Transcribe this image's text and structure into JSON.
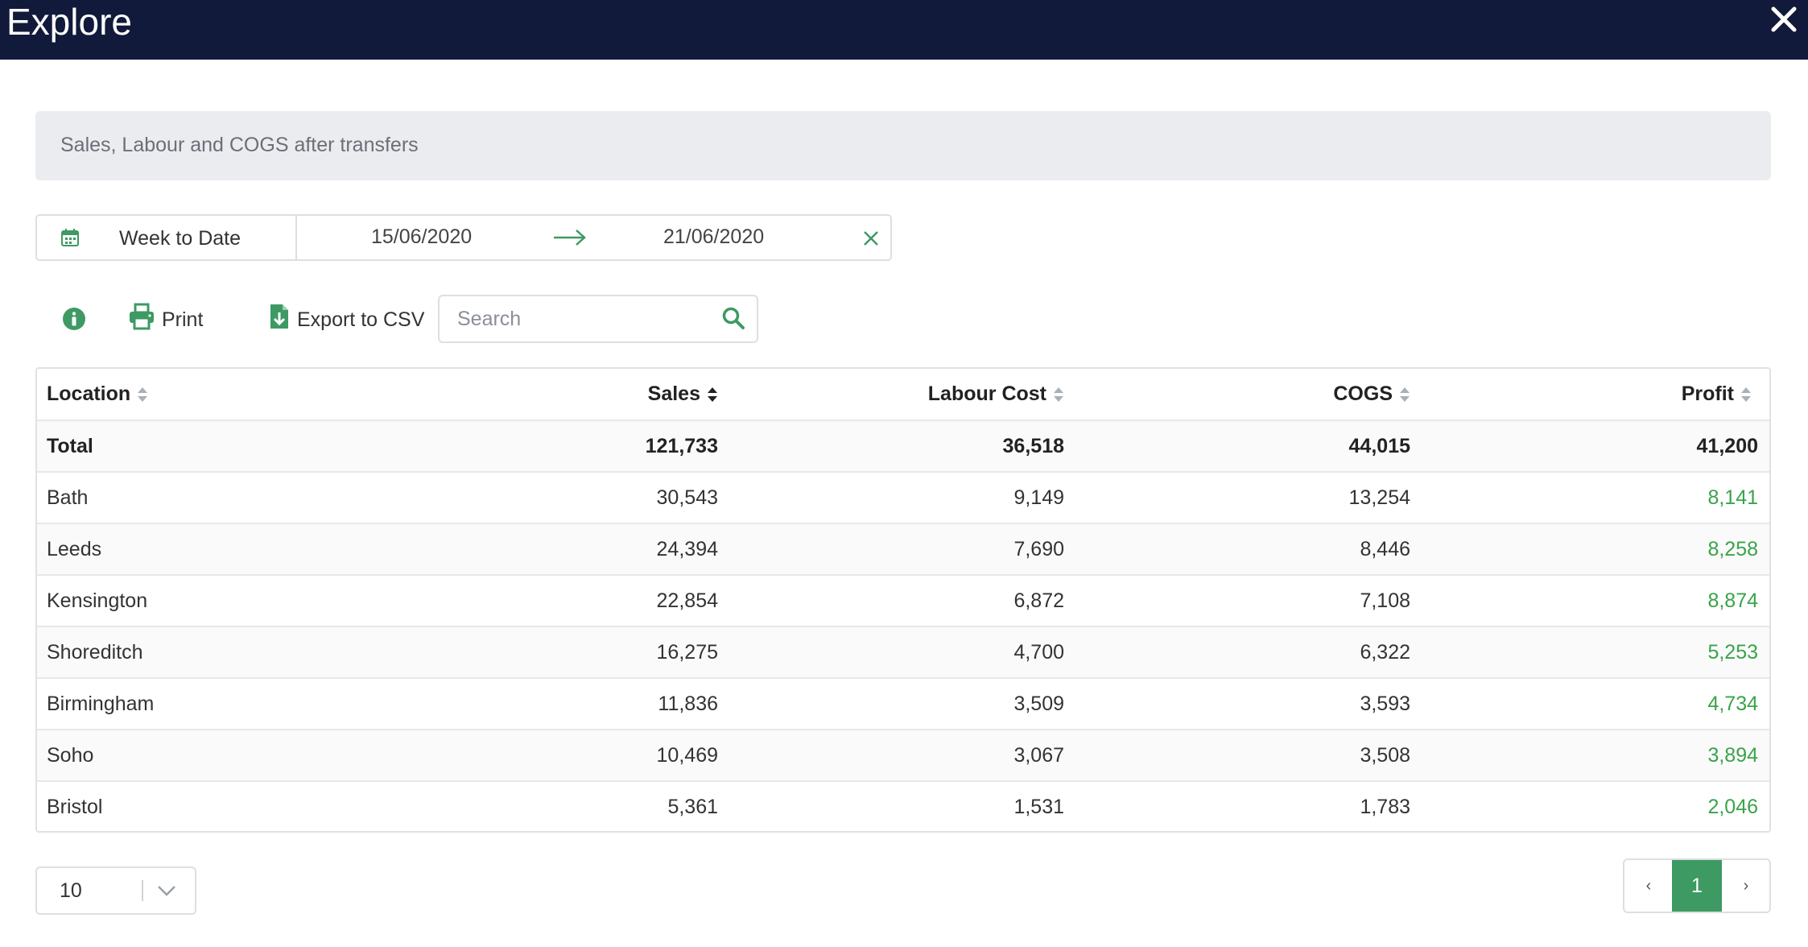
{
  "window": {
    "title": "Explore"
  },
  "banner": {
    "text": "Sales, Labour and COGS after transfers"
  },
  "date_range": {
    "preset": "Week to Date",
    "start": "15/06/2020",
    "end": "21/06/2020"
  },
  "toolbar": {
    "print_label": "Print",
    "export_label": "Export to CSV"
  },
  "search": {
    "placeholder": "Search",
    "value": ""
  },
  "table": {
    "columns": [
      "Location",
      "Sales",
      "Labour Cost",
      "COGS",
      "Profit"
    ],
    "total": {
      "location": "Total",
      "sales": "121,733",
      "labour": "36,518",
      "cogs": "44,015",
      "profit": "41,200"
    },
    "rows": [
      {
        "location": "Bath",
        "sales": "30,543",
        "labour": "9,149",
        "cogs": "13,254",
        "profit": "8,141"
      },
      {
        "location": "Leeds",
        "sales": "24,394",
        "labour": "7,690",
        "cogs": "8,446",
        "profit": "8,258"
      },
      {
        "location": "Kensington",
        "sales": "22,854",
        "labour": "6,872",
        "cogs": "7,108",
        "profit": "8,874"
      },
      {
        "location": "Shoreditch",
        "sales": "16,275",
        "labour": "4,700",
        "cogs": "6,322",
        "profit": "5,253"
      },
      {
        "location": "Birmingham",
        "sales": "11,836",
        "labour": "3,509",
        "cogs": "3,593",
        "profit": "4,734"
      },
      {
        "location": "Soho",
        "sales": "10,469",
        "labour": "3,067",
        "cogs": "3,508",
        "profit": "3,894"
      },
      {
        "location": "Bristol",
        "sales": "5,361",
        "labour": "1,531",
        "cogs": "1,783",
        "profit": "2,046"
      }
    ]
  },
  "pagination": {
    "page_size": "10",
    "prev_label": "‹",
    "current_page": "1",
    "next_label": "›"
  },
  "colors": {
    "header_bg": "#111a3a",
    "accent_green": "#3d9a63",
    "profit_green": "#3aa34a"
  },
  "icons": {
    "close": "close-icon",
    "calendar": "calendar-icon",
    "arrow": "arrow-right-icon",
    "clear": "clear-icon",
    "info": "info-icon",
    "print": "printer-icon",
    "export": "export-csv-icon",
    "search": "search-icon",
    "sort": "sort-icon",
    "chevron": "chevron-down-icon"
  }
}
